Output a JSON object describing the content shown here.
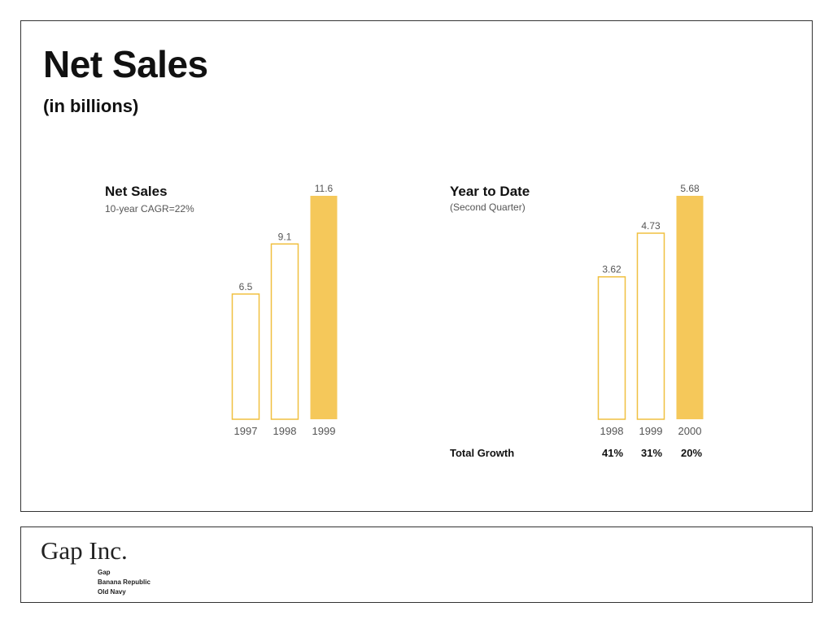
{
  "page": {
    "title": "Net Sales",
    "subtitle": "(in billions)"
  },
  "colors": {
    "accent": "#f5c85a",
    "outline": "#f0c040",
    "label": "#555555"
  },
  "chart_data": [
    {
      "type": "bar",
      "title": "Net Sales",
      "subtitle": "10-year CAGR=22%",
      "categories": [
        "1997",
        "1998",
        "1999"
      ],
      "values": [
        6.5,
        9.1,
        11.6
      ],
      "value_labels": [
        "6.5",
        "9.1",
        "11.6"
      ],
      "highlight": [
        false,
        false,
        true
      ],
      "ylim": [
        0,
        11.6
      ],
      "grid": false
    },
    {
      "type": "bar",
      "title": "Year to Date",
      "subtitle": "(Second Quarter)",
      "categories": [
        "1998",
        "1999",
        "2000"
      ],
      "values": [
        3.62,
        4.73,
        5.68
      ],
      "value_labels": [
        "3.62",
        "4.73",
        "5.68"
      ],
      "highlight": [
        false,
        false,
        true
      ],
      "ylim": [
        0,
        5.68
      ],
      "grid": false
    }
  ],
  "growth": {
    "label": "Total Growth",
    "values": [
      "41%",
      "31%",
      "20%"
    ]
  },
  "footer": {
    "logo": "Gap Inc.",
    "brands": [
      "Gap",
      "Banana Republic",
      "Old Navy"
    ]
  }
}
